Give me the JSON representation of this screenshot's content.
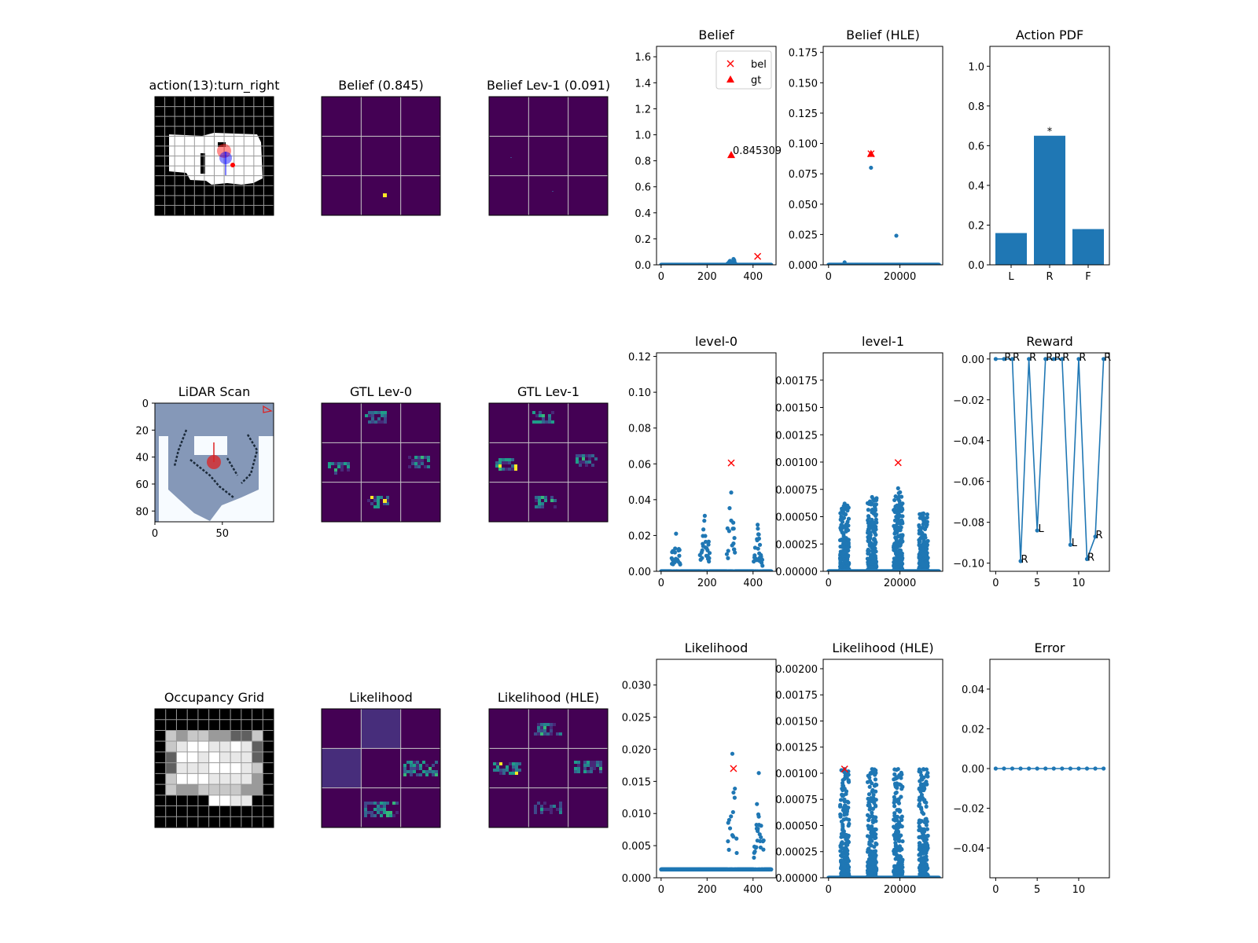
{
  "colors": {
    "series": "#1f77b4",
    "marker": "#ff0000",
    "viridis_dark": "#440154",
    "viridis_yellow": "#fde725",
    "lidar_bg": "#8598b8",
    "lidar_free": "#f7fbff"
  },
  "panels": {
    "p00": {
      "title": "action(13):turn_right"
    },
    "p01": {
      "title": "Belief (0.845)"
    },
    "p02": {
      "title": "Belief Lev-1 (0.091)"
    },
    "p10": {
      "title": "LiDAR Scan",
      "xticks": [
        "0",
        "50"
      ],
      "yticks": [
        "0",
        "20",
        "40",
        "60",
        "80"
      ]
    },
    "p11": {
      "title": "GTL Lev-0"
    },
    "p12": {
      "title": "GTL Lev-1"
    },
    "p20": {
      "title": "Occupancy Grid"
    },
    "p21": {
      "title": "Likelihood"
    },
    "p22": {
      "title": "Likelihood (HLE)"
    }
  },
  "chart_data": [
    {
      "id": "belief",
      "type": "scatter",
      "title": "Belief",
      "xlim": [
        -20,
        500
      ],
      "ylim": [
        0,
        1.68
      ],
      "xticks": [
        0,
        200,
        400
      ],
      "yticks": [
        0.0,
        0.2,
        0.4,
        0.6,
        0.8,
        1.0,
        1.2,
        1.4,
        1.6
      ],
      "ydec": 1,
      "legend": {
        "placement": "top-right",
        "entries": [
          {
            "label": "bel",
            "marker": "x"
          },
          {
            "label": "gt",
            "marker": "triangle"
          }
        ]
      },
      "markers": {
        "bel": {
          "x": 420,
          "y": 0.065
        },
        "gt": {
          "x": 305,
          "y": 0.845309
        }
      },
      "annotation": {
        "x": 305,
        "y": 0.845309,
        "text": "0.845309"
      },
      "bumps": [
        [
          300,
          0.03,
          12
        ],
        [
          315,
          0.045,
          10
        ]
      ],
      "npoints": 480,
      "x_max": 480
    },
    {
      "id": "belief_hle",
      "type": "scatter",
      "title": "Belief (HLE)",
      "xlim": [
        -1500,
        32000
      ],
      "ylim": [
        0,
        0.18
      ],
      "xticks": [
        0,
        20000
      ],
      "yticks": [
        0.0,
        0.025,
        0.05,
        0.075,
        0.1,
        0.125,
        0.15,
        0.175
      ],
      "ydec": 3,
      "markers": {
        "bel": {
          "x": 11900,
          "y": 0.0915
        },
        "gt": {
          "x": 11900,
          "y": 0.0915
        }
      },
      "bumps": [
        [
          11900,
          0.08,
          14
        ],
        [
          19000,
          0.024,
          10
        ],
        [
          4500,
          0.002,
          2
        ]
      ],
      "npoints": 640,
      "x_max": 31000
    },
    {
      "id": "action_pdf",
      "type": "bar",
      "title": "Action PDF",
      "ylim": [
        0,
        1.1
      ],
      "categories": [
        "L",
        "R",
        "F"
      ],
      "values": [
        0.16,
        0.65,
        0.18
      ],
      "star": "*",
      "yticks": [
        0.0,
        0.2,
        0.4,
        0.6,
        0.8,
        1.0
      ],
      "ydec": 1
    },
    {
      "id": "level0",
      "type": "scatter",
      "title": "level-0",
      "xlim": [
        -20,
        500
      ],
      "ylim": [
        0,
        0.122
      ],
      "xticks": [
        0,
        200,
        400
      ],
      "yticks": [
        0.0,
        0.02,
        0.04,
        0.06,
        0.08,
        0.1,
        0.12
      ],
      "ydec": 2,
      "markers": {
        "bel": {
          "x": 305,
          "y": 0.0605
        }
      },
      "bumps": [
        [
          65,
          0.021,
          22
        ],
        [
          190,
          0.031,
          22
        ],
        [
          305,
          0.044,
          22
        ],
        [
          420,
          0.026,
          22
        ]
      ],
      "npoints": 480,
      "x_max": 480
    },
    {
      "id": "level1",
      "type": "scatter",
      "title": "level-1",
      "xlim": [
        -1500,
        32000
      ],
      "ylim": [
        0,
        0.002
      ],
      "xticks": [
        0,
        20000
      ],
      "yticks": [
        0.0,
        0.00025,
        0.0005,
        0.00075,
        0.001,
        0.00125,
        0.0015,
        0.00175
      ],
      "ydec": 5,
      "markers": {
        "bel": {
          "x": 19500,
          "y": 0.000995
        }
      },
      "bumps": [
        [
          4500,
          0.00062,
          70
        ],
        [
          12200,
          0.00068,
          70
        ],
        [
          19500,
          0.00076,
          70
        ],
        [
          26600,
          0.00053,
          70
        ]
      ],
      "npoints": 640,
      "x_max": 31000,
      "dense": true
    },
    {
      "id": "reward",
      "type": "line",
      "title": "Reward",
      "xlim": [
        -0.7,
        13.7
      ],
      "ylim": [
        -0.104,
        0.003
      ],
      "xticks": [
        0,
        5,
        10
      ],
      "yticks": [
        0.0,
        -0.02,
        -0.04,
        -0.06,
        -0.08,
        -0.1
      ],
      "ydec": 2,
      "x": [
        0,
        1,
        2,
        3,
        4,
        5,
        6,
        7,
        8,
        9,
        10,
        11,
        12,
        13
      ],
      "y": [
        0.0,
        0.0,
        0.0,
        -0.099,
        0.0,
        -0.084,
        0.0,
        0.0,
        0.0,
        -0.091,
        0.0,
        -0.098,
        -0.087,
        0.0
      ],
      "labels": [
        "R",
        "R",
        "R",
        "R",
        "R",
        "L",
        "R",
        "R",
        "R",
        "L",
        "R",
        "R",
        "R",
        "R"
      ]
    },
    {
      "id": "likelihood",
      "type": "scatter",
      "title": "Likelihood",
      "xlim": [
        -20,
        500
      ],
      "ylim": [
        0,
        0.034
      ],
      "xticks": [
        0,
        200,
        400
      ],
      "yticks": [
        0.0,
        0.005,
        0.01,
        0.015,
        0.02,
        0.025,
        0.03
      ],
      "ydec": 3,
      "markers": {
        "bel": {
          "x": 315,
          "y": 0.017
        }
      },
      "baseline": 0.0013,
      "bumps": [
        [
          310,
          0.018,
          22
        ],
        [
          425,
          0.015,
          22
        ]
      ],
      "npoints": 480,
      "x_max": 480
    },
    {
      "id": "likelihood_hle",
      "type": "scatter",
      "title": "Likelihood (HLE)",
      "xlim": [
        -1500,
        32000
      ],
      "ylim": [
        0,
        0.00209
      ],
      "xticks": [
        0,
        20000
      ],
      "yticks": [
        0.0,
        0.00025,
        0.0005,
        0.00075,
        0.001,
        0.00125,
        0.0015,
        0.00175,
        0.002
      ],
      "ydec": 5,
      "markers": {
        "bel": {
          "x": 4500,
          "y": 0.00104
        }
      },
      "bumps": [
        [
          4500,
          0.00104,
          70
        ],
        [
          12200,
          0.00104,
          70
        ],
        [
          19500,
          0.00104,
          70
        ],
        [
          26600,
          0.00104,
          70
        ]
      ],
      "npoints": 640,
      "x_max": 31000,
      "dense": true
    },
    {
      "id": "error",
      "type": "line",
      "title": "Error",
      "xlim": [
        -0.7,
        13.7
      ],
      "ylim": [
        -0.055,
        0.055
      ],
      "xticks": [
        0,
        5,
        10
      ],
      "yticks": [
        0.04,
        0.02,
        0.0,
        -0.02,
        -0.04
      ],
      "ydec": 2,
      "x": [
        0,
        1,
        2,
        3,
        4,
        5,
        6,
        7,
        8,
        9,
        10,
        11,
        12,
        13
      ],
      "y": [
        0,
        0,
        0,
        0,
        0,
        0,
        0,
        0,
        0,
        0,
        0,
        0,
        0,
        0
      ]
    }
  ]
}
